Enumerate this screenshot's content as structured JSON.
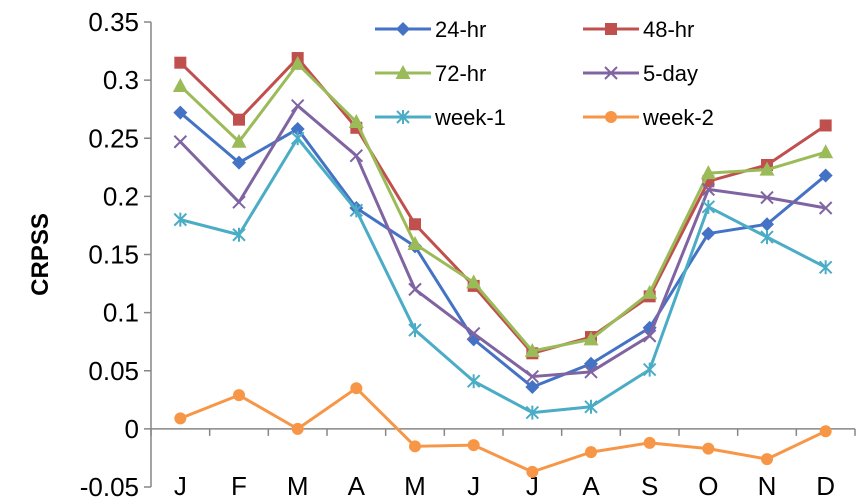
{
  "chart_data": {
    "type": "line",
    "title": "",
    "xlabel": "",
    "ylabel": "CRPSS",
    "ylim": [
      -0.05,
      0.35
    ],
    "yticks": [
      -0.05,
      0,
      0.05,
      0.1,
      0.15,
      0.2,
      0.25,
      0.3,
      0.35
    ],
    "ytick_labels": [
      "-0.05",
      "0",
      "0.05",
      "0.1",
      "0.15",
      "0.2",
      "0.25",
      "0.3",
      "0.35"
    ],
    "categories": [
      "J",
      "F",
      "M",
      "A",
      "M",
      "J",
      "J",
      "A",
      "S",
      "O",
      "N",
      "D"
    ],
    "grid": false,
    "legend_position": "top-right",
    "series": [
      {
        "name": "24-hr",
        "color": "#4472C4",
        "marker": "diamond",
        "values": [
          0.272,
          0.229,
          0.258,
          0.19,
          0.157,
          0.077,
          0.036,
          0.056,
          0.087,
          0.168,
          0.176,
          0.218
        ]
      },
      {
        "name": "48-hr",
        "color": "#C0504D",
        "marker": "square",
        "values": [
          0.315,
          0.266,
          0.319,
          0.259,
          0.176,
          0.123,
          0.065,
          0.079,
          0.114,
          0.213,
          0.227,
          0.261
        ]
      },
      {
        "name": "72-hr",
        "color": "#9BBB59",
        "marker": "triangle",
        "values": [
          0.295,
          0.247,
          0.314,
          0.264,
          0.159,
          0.126,
          0.067,
          0.077,
          0.117,
          0.22,
          0.223,
          0.238
        ]
      },
      {
        "name": "5-day",
        "color": "#8064A2",
        "marker": "x",
        "values": [
          0.247,
          0.195,
          0.278,
          0.235,
          0.12,
          0.082,
          0.045,
          0.049,
          0.08,
          0.206,
          0.199,
          0.19
        ]
      },
      {
        "name": "week-1",
        "color": "#4BACC6",
        "marker": "star",
        "values": [
          0.18,
          0.167,
          0.25,
          0.188,
          0.085,
          0.041,
          0.014,
          0.019,
          0.051,
          0.191,
          0.165,
          0.139
        ]
      },
      {
        "name": "week-2",
        "color": "#F79646",
        "marker": "circle",
        "values": [
          0.009,
          0.029,
          0.0,
          0.035,
          -0.015,
          -0.014,
          -0.037,
          -0.02,
          -0.012,
          -0.017,
          -0.026,
          -0.002
        ]
      }
    ]
  }
}
